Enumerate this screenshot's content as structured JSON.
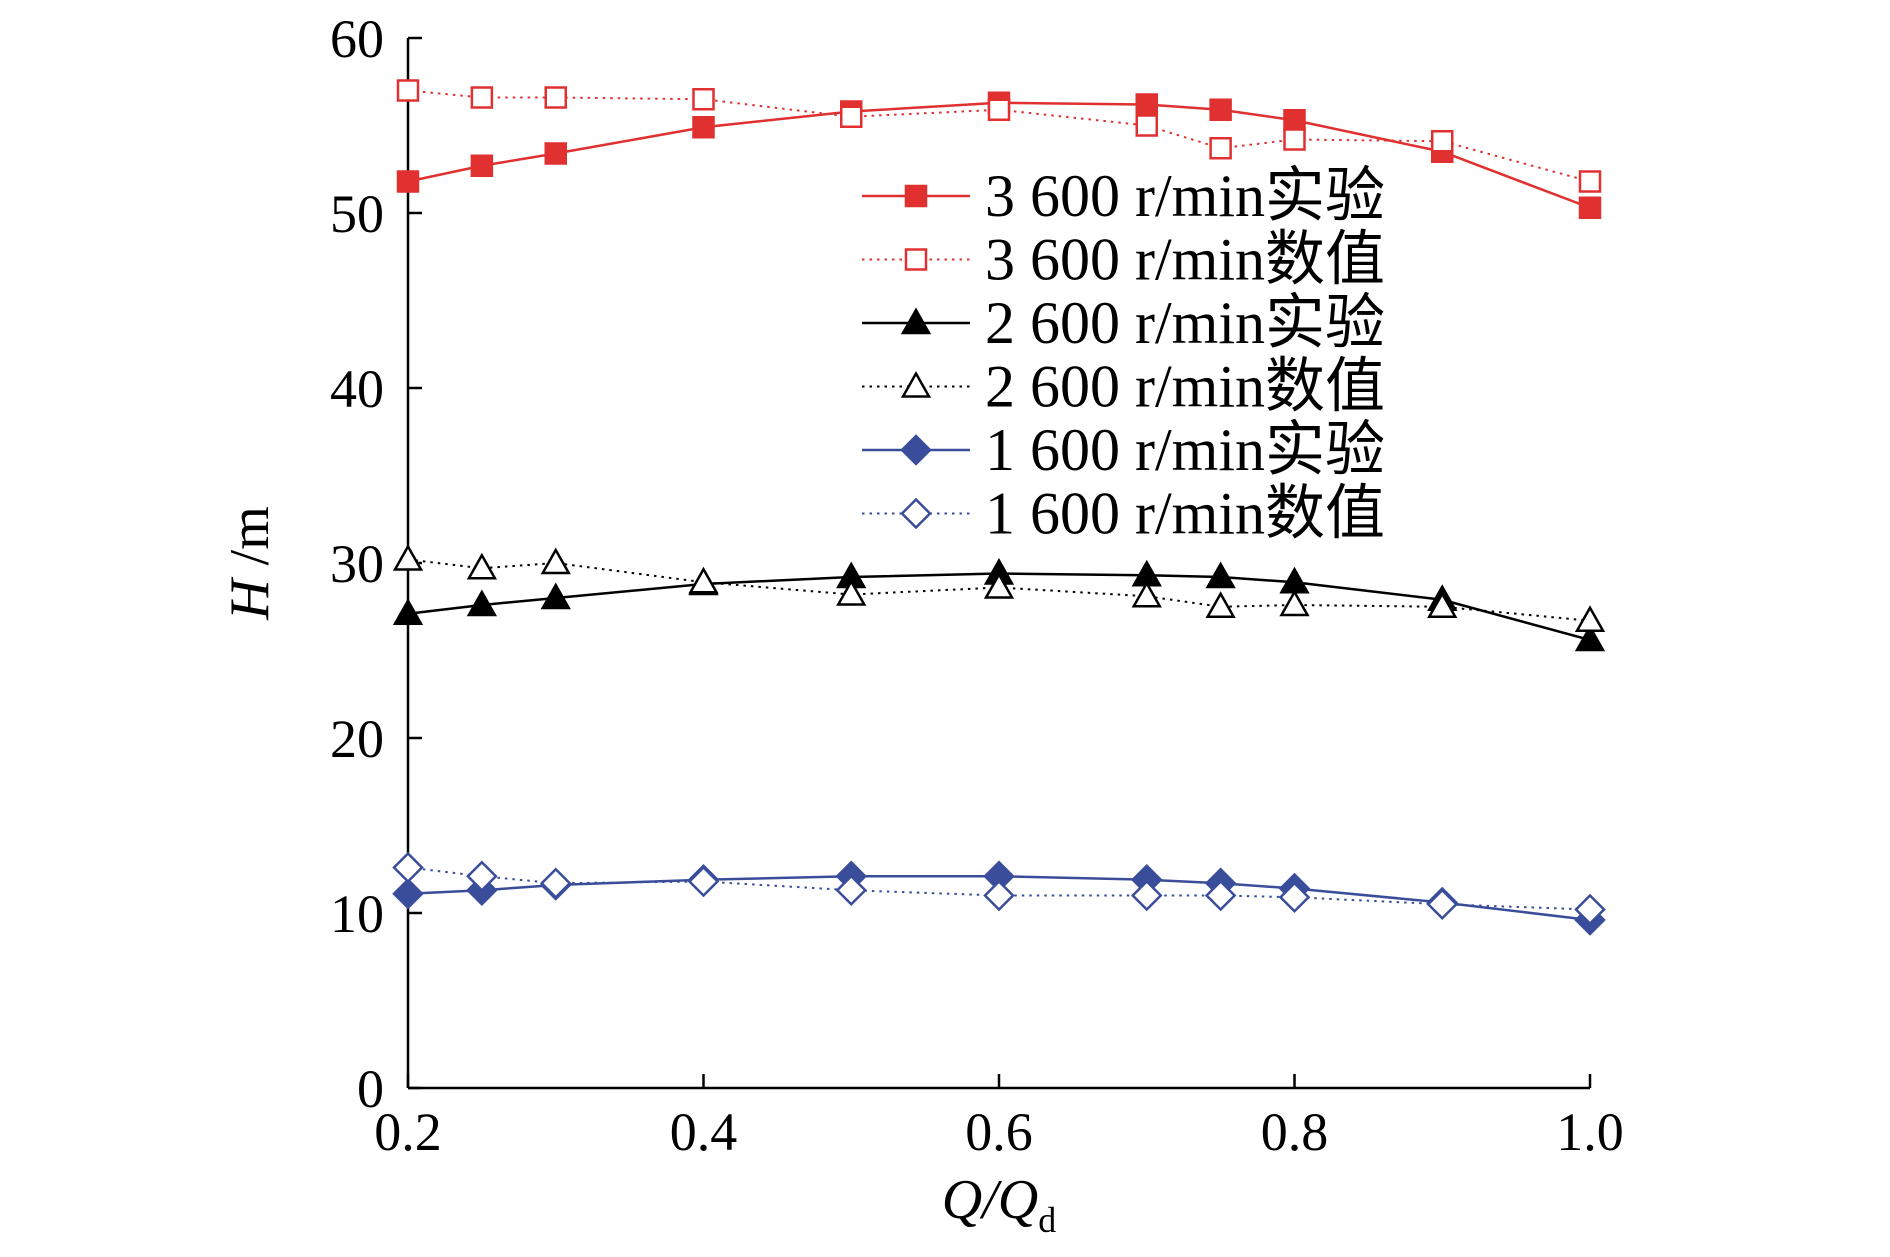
{
  "chart_data": {
    "type": "line",
    "title": "",
    "xlabel": {
      "main": "Q/Q",
      "sub": "d"
    },
    "ylabel": {
      "main": "H",
      "unit": " /m"
    },
    "xlim": [
      0.2,
      1.0
    ],
    "ylim": [
      0,
      60
    ],
    "xticks": [
      "0.2",
      "0.4",
      "0.6",
      "0.8",
      "1.0"
    ],
    "yticks": [
      "0",
      "10",
      "20",
      "30",
      "40",
      "50",
      "60"
    ],
    "grid": false,
    "legend_position": "upper-right",
    "x": [
      0.2,
      0.25,
      0.3,
      0.4,
      0.5,
      0.6,
      0.7,
      0.75,
      0.8,
      0.9,
      1.0
    ],
    "series": [
      {
        "name": "3 600 r/min实验",
        "color": "#e03030",
        "marker": "square-filled",
        "line": "solid",
        "values": [
          51.8,
          52.7,
          53.4,
          54.9,
          55.8,
          56.3,
          56.2,
          55.9,
          55.3,
          53.5,
          50.3
        ]
      },
      {
        "name": "3 600 r/min数值",
        "color": "#e03030",
        "marker": "square-open",
        "line": "dotted",
        "values": [
          57.0,
          56.6,
          56.6,
          56.5,
          55.5,
          55.9,
          55.0,
          53.7,
          54.2,
          54.1,
          51.8
        ]
      },
      {
        "name": "2 600 r/min实验",
        "color": "#000000",
        "marker": "triangle-filled",
        "line": "solid",
        "values": [
          27.1,
          27.6,
          28.0,
          28.8,
          29.2,
          29.4,
          29.3,
          29.2,
          28.9,
          27.9,
          25.6
        ]
      },
      {
        "name": "2 600 r/min数值",
        "color": "#000000",
        "marker": "triangle-open",
        "line": "dotted",
        "values": [
          30.2,
          29.7,
          30.0,
          28.9,
          28.2,
          28.6,
          28.1,
          27.5,
          27.6,
          27.5,
          26.7
        ]
      },
      {
        "name": "1 600 r/min实验",
        "color": "#3a4d9a",
        "marker": "diamond-filled",
        "line": "solid",
        "values": [
          11.1,
          11.3,
          11.6,
          11.9,
          12.1,
          12.1,
          11.9,
          11.7,
          11.4,
          10.6,
          9.6
        ]
      },
      {
        "name": "1 600 r/min数值",
        "color": "#3a4d9a",
        "marker": "diamond-open",
        "line": "dotted",
        "values": [
          12.6,
          12.1,
          11.7,
          11.8,
          11.3,
          11.0,
          11.0,
          11.0,
          10.9,
          10.5,
          10.2
        ]
      }
    ]
  }
}
